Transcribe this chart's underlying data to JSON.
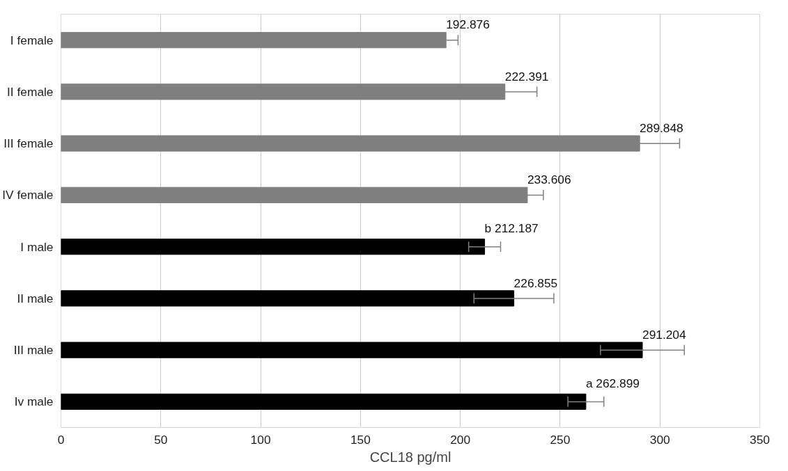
{
  "chart_data": {
    "type": "bar",
    "orientation": "horizontal",
    "xlabel": "CCL18 pg/ml",
    "categories": [
      "I female",
      "II female",
      "III female",
      "IV female",
      "I male",
      "II male",
      "III male",
      "Iv male"
    ],
    "values": [
      192.876,
      222.391,
      289.848,
      233.606,
      212.187,
      226.855,
      291.204,
      262.899
    ],
    "colors": [
      "#7f7f7f",
      "#7f7f7f",
      "#7f7f7f",
      "#7f7f7f",
      "#000000",
      "#000000",
      "#000000",
      "#000000"
    ],
    "errors": [
      6,
      16,
      20,
      8,
      8,
      20,
      21,
      9
    ],
    "value_labels": [
      "192.876",
      "222.391",
      "289.848",
      "233.606",
      "b 212.187",
      "226.855",
      "291.204",
      "a 262.899"
    ],
    "xlim": [
      0,
      350
    ],
    "xticks": [
      0,
      50,
      100,
      150,
      200,
      250,
      300,
      350
    ],
    "grid": "x"
  }
}
